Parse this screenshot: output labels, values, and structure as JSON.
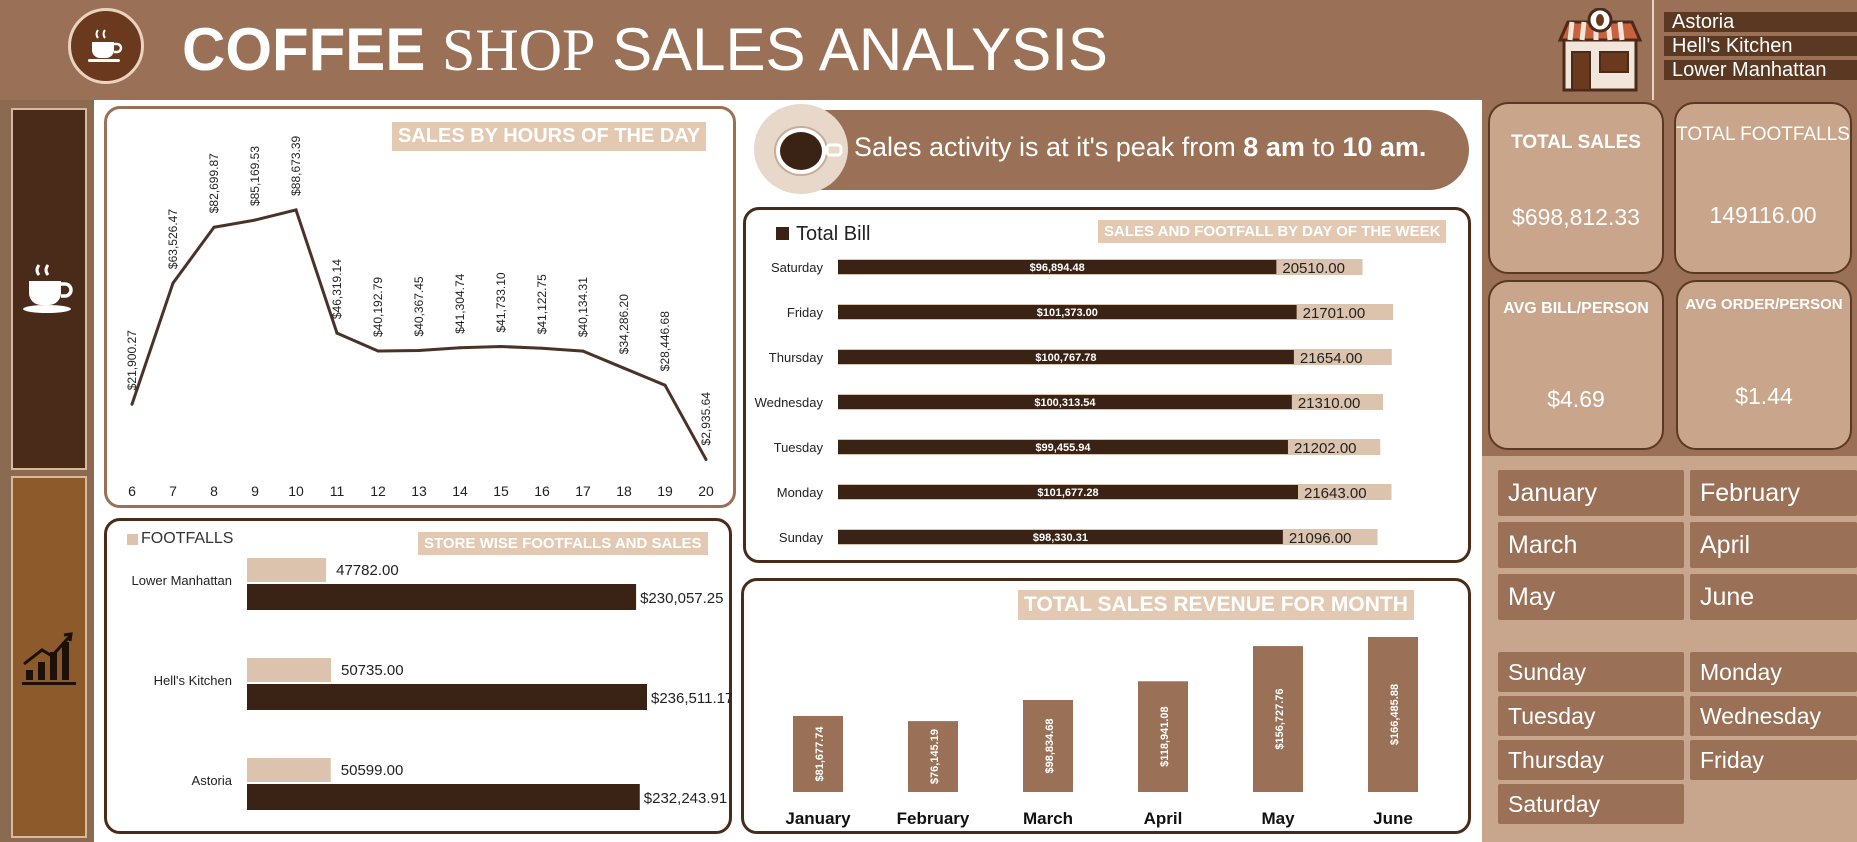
{
  "header": {
    "title_part1": "COFFEE",
    "title_part2": "SHOP",
    "title_part3": "SALES ANALYSIS",
    "store_filter": [
      "Astoria",
      "Hell's Kitchen",
      "Lower Manhattan"
    ]
  },
  "insight": {
    "prefix": "Sales activity is at it's peak from ",
    "start": "8 am",
    "mid": " to ",
    "end": "10 am."
  },
  "kpis": {
    "total_sales_label": "TOTAL SALES",
    "total_sales_value": "$698,812.33",
    "total_footfalls_label": "TOTAL FOOTFALLS",
    "total_footfalls_value": "149116.00",
    "avg_bill_label": "AVG BILL/PERSON",
    "avg_bill_value": "$4.69",
    "avg_order_label": "AVG ORDER/PERSON",
    "avg_order_value": "$1.44"
  },
  "month_slicer": [
    "January",
    "February",
    "March",
    "April",
    "May",
    "June"
  ],
  "day_slicer": [
    "Sunday",
    "Monday",
    "Tuesday",
    "Wednesday",
    "Thursday",
    "Friday",
    "Saturday"
  ],
  "colors": {
    "dark": "#3a2214",
    "light": "#dcc3ad",
    "brown": "#9a7156",
    "background": "#8b6a52"
  },
  "chart_data": [
    {
      "type": "line",
      "title": "SALES BY HOURS OF THE DAY",
      "x": [
        "6",
        "7",
        "8",
        "9",
        "10",
        "11",
        "12",
        "13",
        "14",
        "15",
        "16",
        "17",
        "18",
        "19",
        "20"
      ],
      "values": [
        21900.27,
        63526.47,
        82699.87,
        85169.53,
        88673.39,
        46319.14,
        40192.79,
        40367.45,
        41304.74,
        41733.1,
        41122.75,
        40134.31,
        34286.2,
        28446.68,
        2935.64
      ],
      "data_labels": [
        "$21,900.27",
        "$63,526.47",
        "$82,699.87",
        "$85,169.53",
        "$88,673.39",
        "$46,319.14",
        "$40,192.79",
        "$40,367.45",
        "$41,304.74",
        "$41,733.10",
        "$41,122.75",
        "$40,134.31",
        "$34,286.20",
        "$28,446.68",
        "$2,935.64"
      ]
    },
    {
      "type": "bar",
      "orientation": "horizontal",
      "title": "SALES AND FOOTFALL BY DAY OF THE WEEK",
      "categories": [
        "Saturday",
        "Friday",
        "Thursday",
        "Wednesday",
        "Tuesday",
        "Monday",
        "Sunday"
      ],
      "series": [
        {
          "name": "Total Bill",
          "values": [
            96894.48,
            101373.0,
            100767.78,
            100313.54,
            99455.94,
            101677.28,
            98330.31
          ],
          "labels": [
            "$96,894.48",
            "$101,373.00",
            "$100,767.78",
            "$100,313.54",
            "$99,455.94",
            "$101,677.28",
            "$98,330.31"
          ]
        },
        {
          "values": [
            20510,
            21701,
            21654,
            21310,
            21202,
            21643,
            21096
          ],
          "labels": [
            "20510.00",
            "21701.00",
            "21654.00",
            "21310.00",
            "21202.00",
            "21643.00",
            "21096.00"
          ]
        }
      ],
      "legend": "top-left"
    },
    {
      "type": "bar",
      "orientation": "horizontal",
      "title": "STORE WISE FOOTFALLS AND SALES",
      "categories": [
        "Lower Manhattan",
        "Hell's Kitchen",
        "Astoria"
      ],
      "series": [
        {
          "name": "FOOTFALLS",
          "values": [
            47782,
            50735,
            50599
          ],
          "labels": [
            "47782.00",
            "50735.00",
            "50599.00"
          ]
        },
        {
          "values": [
            230057.25,
            236511.17,
            232243.91
          ],
          "labels": [
            "$230,057.25",
            "$236,511.17",
            "$232,243.91"
          ]
        }
      ],
      "legend": "top-left"
    },
    {
      "type": "bar",
      "title": "TOTAL SALES REVENUE FOR MONTH",
      "categories": [
        "January",
        "February",
        "March",
        "April",
        "May",
        "June"
      ],
      "values": [
        81677.74,
        76145.19,
        98834.68,
        118941.08,
        156727.76,
        166485.88
      ],
      "data_labels": [
        "$81,677.74",
        "$76,145.19",
        "$98,834.68",
        "$118,941.08",
        "$156,727.76",
        "$166,485.88"
      ]
    }
  ]
}
